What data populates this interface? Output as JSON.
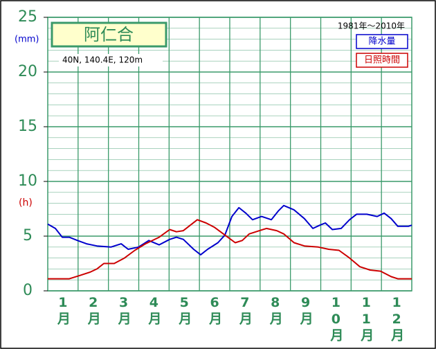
{
  "chart_data": {
    "type": "line",
    "title": "阿仁合",
    "subtitle": "40N,  140.4E,  120m",
    "period": "1981年～2010年",
    "y_unit_precip": "(mm)",
    "y_unit_sun": "(h)",
    "xlim": [
      0,
      12
    ],
    "xticks": [
      {
        "value": 0.5,
        "label": "1月"
      },
      {
        "value": 1.5,
        "label": "2月"
      },
      {
        "value": 2.5,
        "label": "3月"
      },
      {
        "value": 3.5,
        "label": "4月"
      },
      {
        "value": 4.5,
        "label": "5月"
      },
      {
        "value": 5.5,
        "label": "6月"
      },
      {
        "value": 6.5,
        "label": "7月"
      },
      {
        "value": 7.5,
        "label": "8月"
      },
      {
        "value": 8.5,
        "label": "9月"
      },
      {
        "value": 9.5,
        "label": "10月"
      },
      {
        "value": 10.5,
        "label": "11月"
      },
      {
        "value": 11.5,
        "label": "12月"
      }
    ],
    "ylim": [
      0,
      25
    ],
    "yticks": [
      0,
      5,
      10,
      15,
      20,
      25
    ],
    "grid": true,
    "grid_color": "#3a9a6a",
    "series": [
      {
        "name": "降水量",
        "color": "#0000cc",
        "x": [
          0,
          0.25,
          0.48,
          0.71,
          0.98,
          1.28,
          1.62,
          2.08,
          2.42,
          2.65,
          2.99,
          3.33,
          3.67,
          4.02,
          4.24,
          4.47,
          4.81,
          5.04,
          5.27,
          5.61,
          5.84,
          6.07,
          6.3,
          6.53,
          6.75,
          7.05,
          7.37,
          7.6,
          7.78,
          8.12,
          8.46,
          8.74,
          8.97,
          9.15,
          9.38,
          9.67,
          9.95,
          10.18,
          10.52,
          10.86,
          11.09,
          11.32,
          11.54,
          11.89,
          12
        ],
        "values": [
          6.1,
          5.7,
          4.9,
          4.9,
          4.6,
          4.3,
          4.1,
          4.0,
          4.3,
          3.8,
          4.0,
          4.6,
          4.2,
          4.7,
          4.9,
          4.7,
          3.8,
          3.3,
          3.8,
          4.4,
          5.1,
          6.8,
          7.6,
          7.1,
          6.5,
          6.8,
          6.5,
          7.3,
          7.8,
          7.4,
          6.6,
          5.7,
          6.0,
          6.2,
          5.6,
          5.7,
          6.5,
          7.0,
          7.0,
          6.8,
          7.1,
          6.6,
          5.9,
          5.9,
          6.0
        ]
      },
      {
        "name": "日照時間",
        "color": "#cc0000",
        "x": [
          0,
          0.71,
          1.05,
          1.39,
          1.62,
          1.85,
          2.19,
          2.53,
          2.87,
          3.22,
          3.67,
          4.02,
          4.24,
          4.47,
          4.7,
          4.93,
          5.22,
          5.5,
          5.84,
          6.18,
          6.41,
          6.64,
          6.98,
          7.21,
          7.55,
          7.78,
          8.12,
          8.46,
          8.92,
          9.26,
          9.6,
          9.95,
          10.29,
          10.63,
          10.97,
          11.32,
          11.54,
          12
        ],
        "values": [
          1.1,
          1.1,
          1.4,
          1.7,
          2.0,
          2.5,
          2.5,
          3.0,
          3.7,
          4.3,
          4.9,
          5.6,
          5.4,
          5.5,
          6.0,
          6.5,
          6.2,
          5.8,
          5.1,
          4.4,
          4.6,
          5.2,
          5.5,
          5.7,
          5.5,
          5.2,
          4.4,
          4.1,
          4.0,
          3.8,
          3.7,
          3.0,
          2.2,
          1.9,
          1.8,
          1.3,
          1.1,
          1.1
        ]
      }
    ]
  }
}
